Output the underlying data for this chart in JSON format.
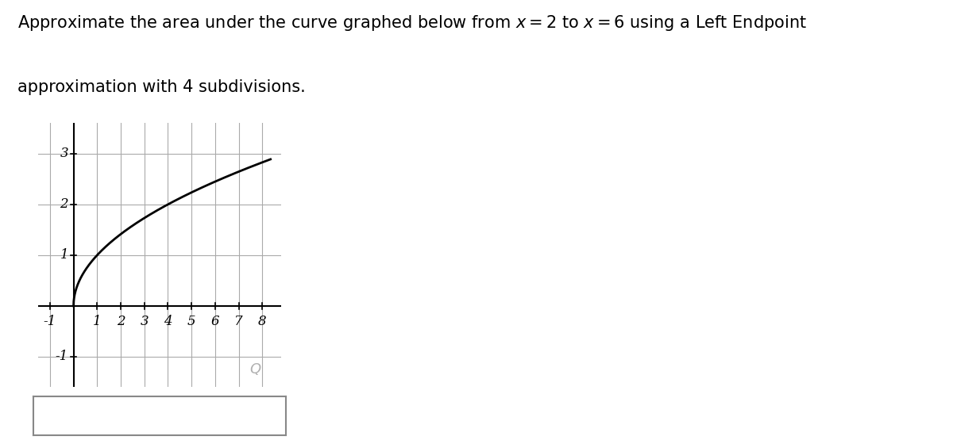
{
  "title_line1": "Approximate the area under the curve graphed below from $x = 2$ to $x = 6$ using a Left Endpoint",
  "title_line2": "approximation with 4 subdivisions.",
  "xlim": [
    -1.5,
    8.8
  ],
  "ylim": [
    -1.6,
    3.6
  ],
  "xtick_vals": [
    -1,
    1,
    2,
    3,
    4,
    5,
    6,
    7,
    8
  ],
  "ytick_vals": [
    -1,
    1,
    2,
    3
  ],
  "grid_color": "#aaaaaa",
  "curve_color": "#000000",
  "axis_color": "#000000",
  "x_curve_start": 0.0,
  "x_curve_end": 8.35,
  "background_color": "#ffffff",
  "title_fontsize": 15,
  "tick_fontsize": 12
}
